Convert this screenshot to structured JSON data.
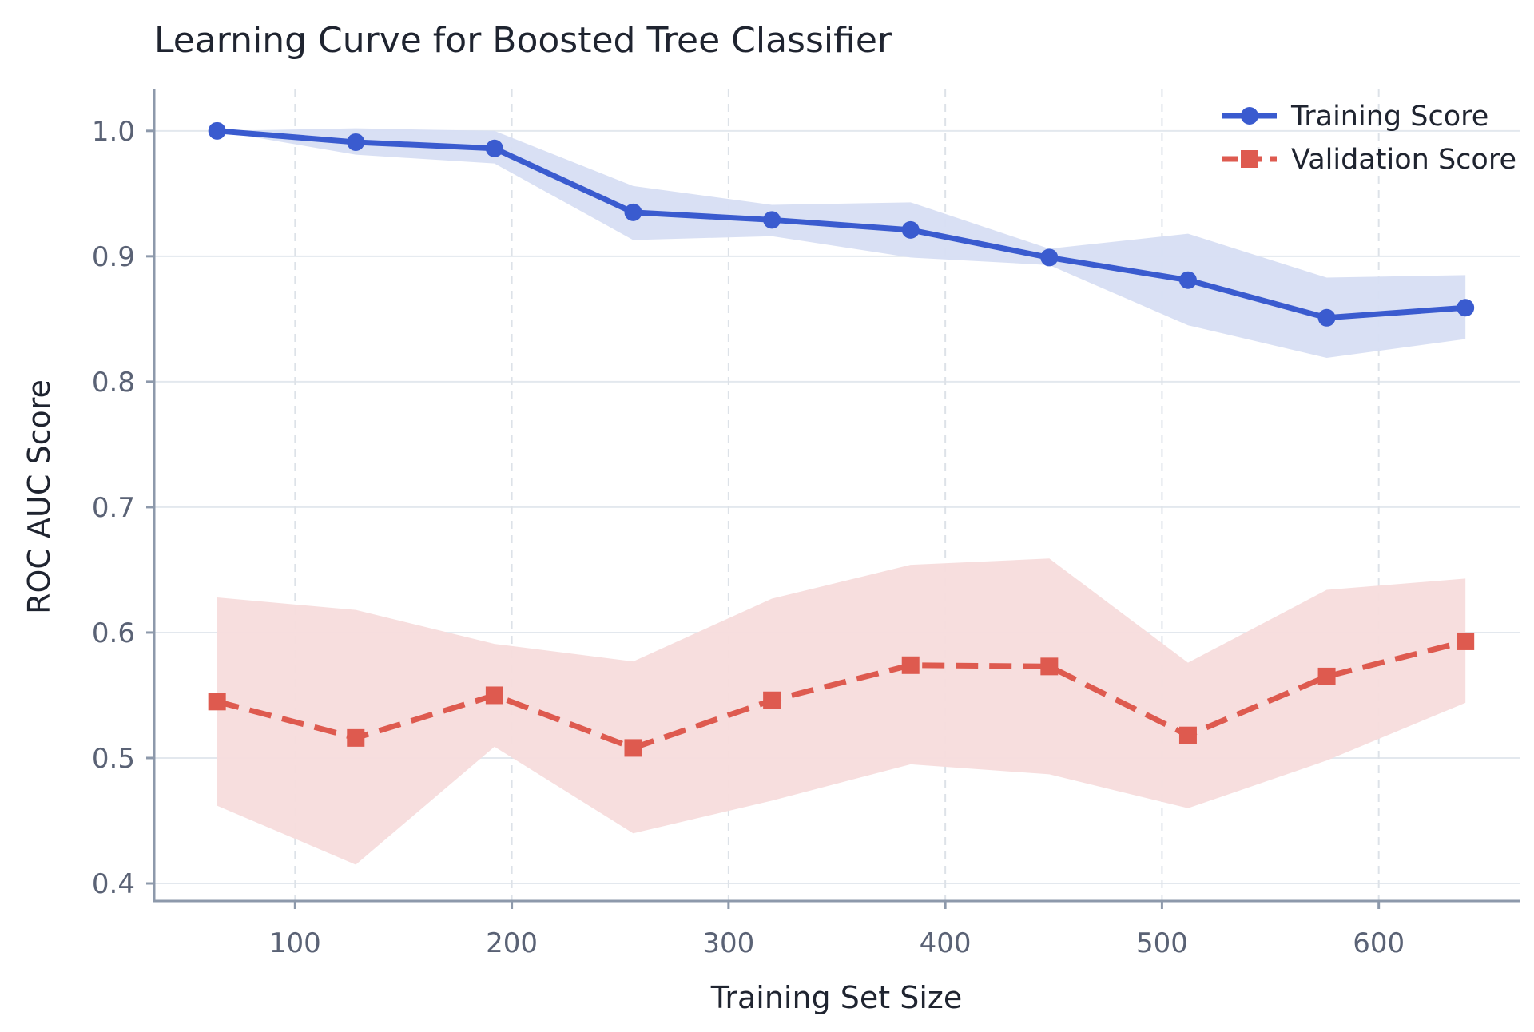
{
  "chart_data": {
    "type": "line",
    "title": "Learning Curve for Boosted Tree Classifier",
    "xlabel": "Training Set Size",
    "ylabel": "ROC AUC Score",
    "xlim": [
      35,
      665
    ],
    "ylim": [
      0.386,
      1.033
    ],
    "xticks": [
      100,
      200,
      300,
      400,
      500,
      600
    ],
    "yticks": [
      0.4,
      0.5,
      0.6,
      0.7,
      0.8,
      0.9,
      1.0
    ],
    "ytick_labels": [
      "0.4",
      "0.5",
      "0.6",
      "0.7",
      "0.8",
      "0.9",
      "1.0"
    ],
    "grid": "on",
    "legend_position": "top-right",
    "x": [
      64,
      128,
      192,
      256,
      320,
      384,
      448,
      512,
      576,
      640
    ],
    "series": [
      {
        "name": "Training Score",
        "color": "#3a5bcf",
        "band_color": "#d7def3",
        "marker": "circle",
        "line_style": "solid",
        "values": [
          1.0,
          0.991,
          0.986,
          0.935,
          0.929,
          0.921,
          0.899,
          0.881,
          0.851,
          0.859
        ],
        "lower": [
          1.0,
          0.981,
          0.974,
          0.913,
          0.916,
          0.899,
          0.893,
          0.845,
          0.819,
          0.834
        ],
        "upper": [
          1.0,
          1.002,
          1.0,
          0.956,
          0.941,
          0.943,
          0.906,
          0.918,
          0.883,
          0.885
        ]
      },
      {
        "name": "Validation Score",
        "color": "#de5a4f",
        "band_color": "#f7dcdc",
        "marker": "square",
        "line_style": "dashed",
        "values": [
          0.545,
          0.516,
          0.55,
          0.508,
          0.546,
          0.574,
          0.573,
          0.518,
          0.565,
          0.593
        ],
        "lower": [
          0.462,
          0.415,
          0.509,
          0.44,
          0.466,
          0.495,
          0.487,
          0.46,
          0.498,
          0.544
        ],
        "upper": [
          0.628,
          0.618,
          0.591,
          0.577,
          0.627,
          0.654,
          0.659,
          0.576,
          0.634,
          0.643
        ]
      }
    ]
  }
}
